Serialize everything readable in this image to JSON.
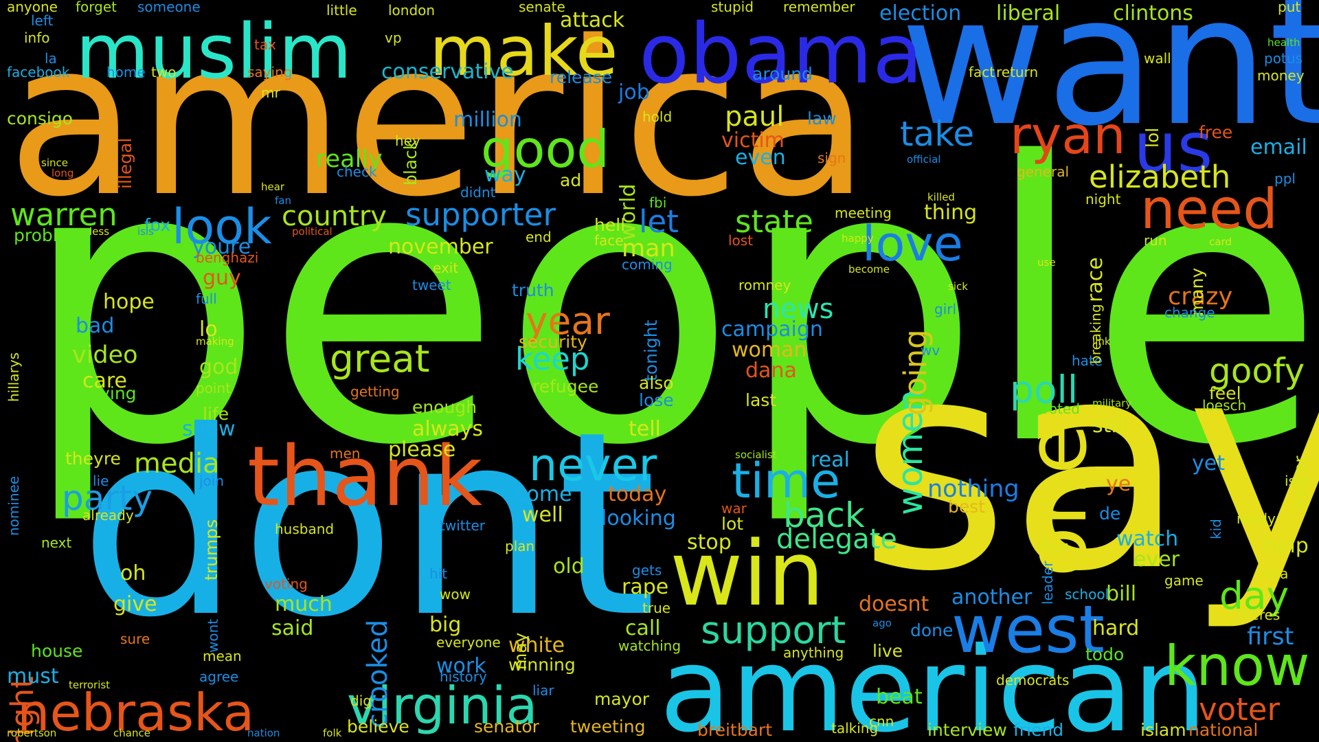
{
  "words": [
    {
      "text": "people",
      "color": "#5ee61a"
    },
    {
      "text": "america",
      "color": "#e89a18"
    },
    {
      "text": "say",
      "color": "#e6df1a"
    },
    {
      "text": "dont",
      "color": "#17b0e6"
    },
    {
      "text": "want",
      "color": "#1a6ee6"
    },
    {
      "text": "american",
      "color": "#1ac4e6"
    },
    {
      "text": "obama",
      "color": "#2a2ae6"
    },
    {
      "text": "muslim",
      "color": "#2ae6c8"
    },
    {
      "text": "make",
      "color": "#e6d81a"
    },
    {
      "text": "win",
      "color": "#d8e61a"
    },
    {
      "text": "thank",
      "color": "#e6551a"
    },
    {
      "text": "one",
      "color": "#e6e01a"
    },
    {
      "text": "us",
      "color": "#2a3ae6"
    },
    {
      "text": "west",
      "color": "#1a7ee6"
    },
    {
      "text": "nebraska",
      "color": "#e6551a"
    },
    {
      "text": "virginia",
      "color": "#2ad8b0"
    },
    {
      "text": "need",
      "color": "#e6551a"
    },
    {
      "text": "know",
      "color": "#5ee61a"
    },
    {
      "text": "ryan",
      "color": "#e6451a"
    },
    {
      "text": "good",
      "color": "#5ee61a"
    },
    {
      "text": "look",
      "color": "#1a8ee6"
    },
    {
      "text": "love",
      "color": "#1a7ee6"
    },
    {
      "text": "great",
      "color": "#a8e61a"
    },
    {
      "text": "time",
      "color": "#1ab0e6"
    },
    {
      "text": "never",
      "color": "#1ac8e6"
    },
    {
      "text": "support",
      "color": "#2ad8a0"
    },
    {
      "text": "poll",
      "color": "#2ad8b0"
    },
    {
      "text": "take",
      "color": "#1a8ee6"
    },
    {
      "text": "elizabeth",
      "color": "#d8e61a"
    },
    {
      "text": "day",
      "color": "#5ee61a"
    },
    {
      "text": "back",
      "color": "#3ee68a"
    },
    {
      "text": "goofy",
      "color": "#a8e61a"
    },
    {
      "text": "year",
      "color": "#e6751a"
    },
    {
      "text": "women",
      "color": "#2ae6a0"
    },
    {
      "text": "going",
      "color": "#d8c81a"
    },
    {
      "text": "warren",
      "color": "#5ee61a"
    },
    {
      "text": "party",
      "color": "#1a9ee6"
    },
    {
      "text": "keep",
      "color": "#1ad8d0"
    },
    {
      "text": "state",
      "color": "#5ee61a"
    },
    {
      "text": "country",
      "color": "#a8e61a"
    },
    {
      "text": "supporter",
      "color": "#1a8ee6"
    },
    {
      "text": "media",
      "color": "#a8e61a"
    },
    {
      "text": "right",
      "color": "#e6551a"
    },
    {
      "text": "crooked",
      "color": "#1a8ee6"
    },
    {
      "text": "paul",
      "color": "#d8e61a"
    },
    {
      "text": "news",
      "color": "#2ae6b0"
    },
    {
      "text": "delegate",
      "color": "#3ee68a"
    },
    {
      "text": "voter",
      "color": "#e6551a"
    },
    {
      "text": "first",
      "color": "#1a8ee6"
    },
    {
      "text": "crazy",
      "color": "#e6751a"
    },
    {
      "text": "nothing",
      "color": "#1a7ee6"
    },
    {
      "text": "really",
      "color": "#5ee61a"
    },
    {
      "text": "election",
      "color": "#1a8ee6"
    },
    {
      "text": "liberal",
      "color": "#a8e61a"
    },
    {
      "text": "clintons",
      "color": "#a8e61a"
    },
    {
      "text": "attack",
      "color": "#d8e61a"
    },
    {
      "text": "conservative",
      "color": "#1ab8d0"
    },
    {
      "text": "million",
      "color": "#1a8ee6"
    },
    {
      "text": "job",
      "color": "#1a7ee6"
    },
    {
      "text": "email",
      "color": "#1ab0e6"
    },
    {
      "text": "bill",
      "color": "#a8e61a"
    },
    {
      "text": "hard",
      "color": "#d8e61a"
    },
    {
      "text": "watch",
      "color": "#1ab0e6"
    },
    {
      "text": "ever",
      "color": "#a8e61a"
    },
    {
      "text": "another",
      "color": "#1a8ee6"
    },
    {
      "text": "still",
      "color": "#d8e61a"
    },
    {
      "text": "victim",
      "color": "#e6551a"
    },
    {
      "text": "even",
      "color": "#1ab0e6"
    },
    {
      "text": "woman",
      "color": "#e6b81a"
    },
    {
      "text": "dana",
      "color": "#e6551a"
    },
    {
      "text": "campaign",
      "color": "#1a8ee6"
    },
    {
      "text": "security",
      "color": "#e6b81a"
    },
    {
      "text": "refugee",
      "color": "#a8e61a"
    },
    {
      "text": "truth",
      "color": "#1a8ee6"
    },
    {
      "text": "video",
      "color": "#a8e61a"
    },
    {
      "text": "care",
      "color": "#d8e61a"
    },
    {
      "text": "trying",
      "color": "#5ee61a"
    },
    {
      "text": "god",
      "color": "#a8e61a"
    },
    {
      "text": "bad",
      "color": "#1a8ee6"
    },
    {
      "text": "hope",
      "color": "#d8e61a"
    },
    {
      "text": "lo",
      "color": "#d8e61a"
    },
    {
      "text": "show",
      "color": "#1ab0e6"
    },
    {
      "text": "life",
      "color": "#a8e61a"
    },
    {
      "text": "theyre",
      "color": "#d8e61a"
    },
    {
      "text": "man",
      "color": "#d8e61a"
    },
    {
      "text": "let",
      "color": "#1a7ee6"
    },
    {
      "text": "world",
      "color": "#a8e61a"
    },
    {
      "text": "tonight",
      "color": "#1a8ee6"
    },
    {
      "text": "youre",
      "color": "#1a8ee6"
    },
    {
      "text": "guy",
      "color": "#e6551a"
    },
    {
      "text": "fox",
      "color": "#1ab0e6"
    },
    {
      "text": "problem",
      "color": "#5ee61a"
    },
    {
      "text": "november",
      "color": "#d8e61a"
    },
    {
      "text": "please",
      "color": "#d8e61a"
    },
    {
      "text": "always",
      "color": "#d8e61a"
    },
    {
      "text": "enough",
      "color": "#a8e61a"
    },
    {
      "text": "come",
      "color": "#1ab0e6"
    },
    {
      "text": "well",
      "color": "#d8e61a"
    },
    {
      "text": "today",
      "color": "#e6751a"
    },
    {
      "text": "looking",
      "color": "#1a8ee6"
    },
    {
      "text": "tell",
      "color": "#d8e61a"
    },
    {
      "text": "lose",
      "color": "#1a8ee6"
    },
    {
      "text": "also",
      "color": "#d8e61a"
    },
    {
      "text": "stop",
      "color": "#d8e61a"
    },
    {
      "text": "lot",
      "color": "#d8e61a"
    },
    {
      "text": "old",
      "color": "#a8e61a"
    },
    {
      "text": "white",
      "color": "#e6b81a"
    },
    {
      "text": "winning",
      "color": "#d8e61a"
    },
    {
      "text": "big",
      "color": "#d8e61a"
    },
    {
      "text": "work",
      "color": "#1a8ee6"
    },
    {
      "text": "give",
      "color": "#d8e61a"
    },
    {
      "text": "oh",
      "color": "#d8e61a"
    },
    {
      "text": "much",
      "color": "#a8e61a"
    },
    {
      "text": "said",
      "color": "#a8e61a"
    },
    {
      "text": "house",
      "color": "#5ee61a"
    },
    {
      "text": "must",
      "color": "#1ab0e6"
    },
    {
      "text": "rape",
      "color": "#d8e61a"
    },
    {
      "text": "call",
      "color": "#a8e61a"
    },
    {
      "text": "doesnt",
      "color": "#e6751a"
    },
    {
      "text": "done",
      "color": "#1a8ee6"
    },
    {
      "text": "live",
      "color": "#d8e61a"
    },
    {
      "text": "beat",
      "color": "#5ee61a"
    },
    {
      "text": "senator",
      "color": "#e6b81a"
    },
    {
      "text": "mayor",
      "color": "#d8e61a"
    },
    {
      "text": "history",
      "color": "#1a8ee6"
    },
    {
      "text": "believe",
      "color": "#d8e61a"
    },
    {
      "text": "tweeting",
      "color": "#e6b81a"
    },
    {
      "text": "breitbart",
      "color": "#e6751a"
    },
    {
      "text": "interview",
      "color": "#a8e61a"
    },
    {
      "text": "friend",
      "color": "#1ab0e6"
    },
    {
      "text": "islam",
      "color": "#d8e61a"
    },
    {
      "text": "national",
      "color": "#e6751a"
    },
    {
      "text": "democrats",
      "color": "#d8e61a"
    },
    {
      "text": "todo",
      "color": "#5ee61a"
    },
    {
      "text": "real",
      "color": "#1ab0e6"
    },
    {
      "text": "ye",
      "color": "#e6751a"
    },
    {
      "text": "best",
      "color": "#e6b81a"
    },
    {
      "text": "yet",
      "color": "#1a8ee6"
    },
    {
      "text": "help",
      "color": "#d8e61a"
    },
    {
      "text": "race",
      "color": "#d8e61a"
    },
    {
      "text": "many",
      "color": "#d8e61a"
    },
    {
      "text": "feel",
      "color": "#d8e61a"
    },
    {
      "text": "loesch",
      "color": "#a8e61a"
    },
    {
      "text": "voted",
      "color": "#5ee61a"
    },
    {
      "text": "hate",
      "color": "#1a8ee6"
    },
    {
      "text": "thing",
      "color": "#d8e61a"
    },
    {
      "text": "meeting",
      "color": "#d8e61a"
    },
    {
      "text": "sign",
      "color": "#e6751a"
    },
    {
      "text": "fbi",
      "color": "#5ee61a"
    },
    {
      "text": "hell",
      "color": "#d8e61a"
    },
    {
      "text": "face",
      "color": "#d8e61a"
    },
    {
      "text": "coming",
      "color": "#1a8ee6"
    },
    {
      "text": "way",
      "color": "#1ab0e6"
    },
    {
      "text": "didnt",
      "color": "#1a8ee6"
    },
    {
      "text": "black",
      "color": "#a8e61a"
    },
    {
      "text": "hey",
      "color": "#d8e61a"
    },
    {
      "text": "ad",
      "color": "#d8e61a"
    },
    {
      "text": "release",
      "color": "#1a8ee6"
    },
    {
      "text": "hold",
      "color": "#d8e61a"
    },
    {
      "text": "law",
      "color": "#1a8ee6"
    },
    {
      "text": "last",
      "color": "#d8e61a"
    },
    {
      "text": "school",
      "color": "#1ab0e6"
    },
    {
      "text": "game",
      "color": "#d8e61a"
    },
    {
      "text": "usa",
      "color": "#d8e61a"
    },
    {
      "text": "theres",
      "color": "#d8e61a"
    },
    {
      "text": "ready",
      "color": "#d8e61a"
    },
    {
      "text": "isnt",
      "color": "#d8e61a"
    },
    {
      "text": "better",
      "color": "#d8e61a"
    },
    {
      "text": "free",
      "color": "#e6551a"
    },
    {
      "text": "ppl",
      "color": "#1a8ee6"
    },
    {
      "text": "lol",
      "color": "#d8e61a"
    },
    {
      "text": "run",
      "color": "#d8e61a"
    },
    {
      "text": "wall",
      "color": "#d8e61a"
    },
    {
      "text": "money",
      "color": "#d8e61a"
    },
    {
      "text": "potus",
      "color": "#1a8ee6"
    },
    {
      "text": "health",
      "color": "#5ee61a"
    },
    {
      "text": "put",
      "color": "#d8e61a"
    },
    {
      "text": "return",
      "color": "#d8e61a"
    },
    {
      "text": "fact",
      "color": "#d8e61a"
    },
    {
      "text": "around",
      "color": "#1a8ee6"
    },
    {
      "text": "remember",
      "color": "#d8e61a"
    },
    {
      "text": "stupid",
      "color": "#d8e61a"
    },
    {
      "text": "senate",
      "color": "#d8e61a"
    },
    {
      "text": "london",
      "color": "#d8e61a"
    },
    {
      "text": "little",
      "color": "#d8e61a"
    },
    {
      "text": "someone",
      "color": "#1a8ee6"
    },
    {
      "text": "anyone",
      "color": "#d8e61a"
    },
    {
      "text": "forget",
      "color": "#a8e61a"
    },
    {
      "text": "facebook",
      "color": "#1ab0e6"
    },
    {
      "text": "consigo",
      "color": "#a8e61a"
    },
    {
      "text": "home",
      "color": "#1a8ee6"
    },
    {
      "text": "two",
      "color": "#d8e61a"
    },
    {
      "text": "saying",
      "color": "#e6751a"
    },
    {
      "text": "mr",
      "color": "#d8e61a"
    },
    {
      "text": "tax",
      "color": "#e6551a"
    },
    {
      "text": "vp",
      "color": "#d8e61a"
    },
    {
      "text": "info",
      "color": "#d8e61a"
    },
    {
      "text": "left",
      "color": "#1a8ee6"
    },
    {
      "text": "la",
      "color": "#1a8ee6"
    },
    {
      "text": "illegal",
      "color": "#e6551a"
    },
    {
      "text": "check",
      "color": "#1a8ee6"
    },
    {
      "text": "since",
      "color": "#d8e61a"
    },
    {
      "text": "long",
      "color": "#e6551a"
    },
    {
      "text": "fan",
      "color": "#1a8ee6"
    },
    {
      "text": "hear",
      "color": "#d8e61a"
    },
    {
      "text": "political",
      "color": "#e6551a"
    },
    {
      "text": "isis",
      "color": "#1a8ee6"
    },
    {
      "text": "less",
      "color": "#d8e61a"
    },
    {
      "text": "full",
      "color": "#1a8ee6"
    },
    {
      "text": "benghazi",
      "color": "#e6551a"
    },
    {
      "text": "hillarys",
      "color": "#d8e61a"
    },
    {
      "text": "point",
      "color": "#a8e61a"
    },
    {
      "text": "making",
      "color": "#d8e61a"
    },
    {
      "text": "lie",
      "color": "#1a8ee6"
    },
    {
      "text": "already",
      "color": "#d8e61a"
    },
    {
      "text": "join",
      "color": "#1a8ee6"
    },
    {
      "text": "men",
      "color": "#e6751a"
    },
    {
      "text": "husband",
      "color": "#d8e61a"
    },
    {
      "text": "next",
      "color": "#a8e61a"
    },
    {
      "text": "nominee",
      "color": "#1a8ee6"
    },
    {
      "text": "trumps",
      "color": "#d8e61a"
    },
    {
      "text": "wont",
      "color": "#1a8ee6"
    },
    {
      "text": "mean",
      "color": "#d8e61a"
    },
    {
      "text": "agree",
      "color": "#1a8ee6"
    },
    {
      "text": "terrorist",
      "color": "#d8e61a"
    },
    {
      "text": "robertson",
      "color": "#d8e61a"
    },
    {
      "text": "chance",
      "color": "#d8e61a"
    },
    {
      "text": "nation",
      "color": "#1a8ee6"
    },
    {
      "text": "folk",
      "color": "#d8e61a"
    },
    {
      "text": "dig",
      "color": "#d8e61a"
    },
    {
      "text": "sure",
      "color": "#e6751a"
    },
    {
      "text": "voting",
      "color": "#e6551a"
    },
    {
      "text": "exit",
      "color": "#d8e61a"
    },
    {
      "text": "tweet",
      "color": "#1a8ee6"
    },
    {
      "text": "end",
      "color": "#d8e61a"
    },
    {
      "text": "getting",
      "color": "#e6751a"
    },
    {
      "text": "may",
      "color": "#d8e61a"
    },
    {
      "text": "liar",
      "color": "#1a8ee6"
    },
    {
      "text": "wow",
      "color": "#d8e61a"
    },
    {
      "text": "twitter",
      "color": "#1a8ee6"
    },
    {
      "text": "plan",
      "color": "#d8e61a"
    },
    {
      "text": "hit",
      "color": "#1a8ee6"
    },
    {
      "text": "everyone",
      "color": "#d8e61a"
    },
    {
      "text": "gets",
      "color": "#1a8ee6"
    },
    {
      "text": "true",
      "color": "#d8e61a"
    },
    {
      "text": "watching",
      "color": "#a8e61a"
    },
    {
      "text": "war",
      "color": "#e6551a"
    },
    {
      "text": "romney",
      "color": "#d8e61a"
    },
    {
      "text": "socialist",
      "color": "#a8e61a"
    },
    {
      "text": "anything",
      "color": "#d8e61a"
    },
    {
      "text": "talking",
      "color": "#d8e61a"
    },
    {
      "text": "cnn",
      "color": "#d8e61a"
    },
    {
      "text": "ago",
      "color": "#1a8ee6"
    },
    {
      "text": "general",
      "color": "#e6b81a"
    },
    {
      "text": "night",
      "color": "#d8e61a"
    },
    {
      "text": "official",
      "color": "#1a8ee6"
    },
    {
      "text": "killed",
      "color": "#d8e61a"
    },
    {
      "text": "happy",
      "color": "#d8e61a"
    },
    {
      "text": "lost",
      "color": "#e6551a"
    },
    {
      "text": "become",
      "color": "#d8e61a"
    },
    {
      "text": "girl",
      "color": "#1a8ee6"
    },
    {
      "text": "sick",
      "color": "#d8e61a"
    },
    {
      "text": "wv",
      "color": "#1a8ee6"
    },
    {
      "text": "change",
      "color": "#1a8ee6"
    },
    {
      "text": "link",
      "color": "#d8e61a"
    },
    {
      "text": "military",
      "color": "#a8e61a"
    },
    {
      "text": "breaking",
      "color": "#d8e61a"
    },
    {
      "text": "use",
      "color": "#d8e61a"
    },
    {
      "text": "card",
      "color": "#d8e61a"
    },
    {
      "text": "leader",
      "color": "#1a8ee6"
    },
    {
      "text": "shes",
      "color": "#d8e61a"
    },
    {
      "text": "kid",
      "color": "#1a8ee6"
    },
    {
      "text": "de",
      "color": "#1a8ee6"
    }
  ]
}
